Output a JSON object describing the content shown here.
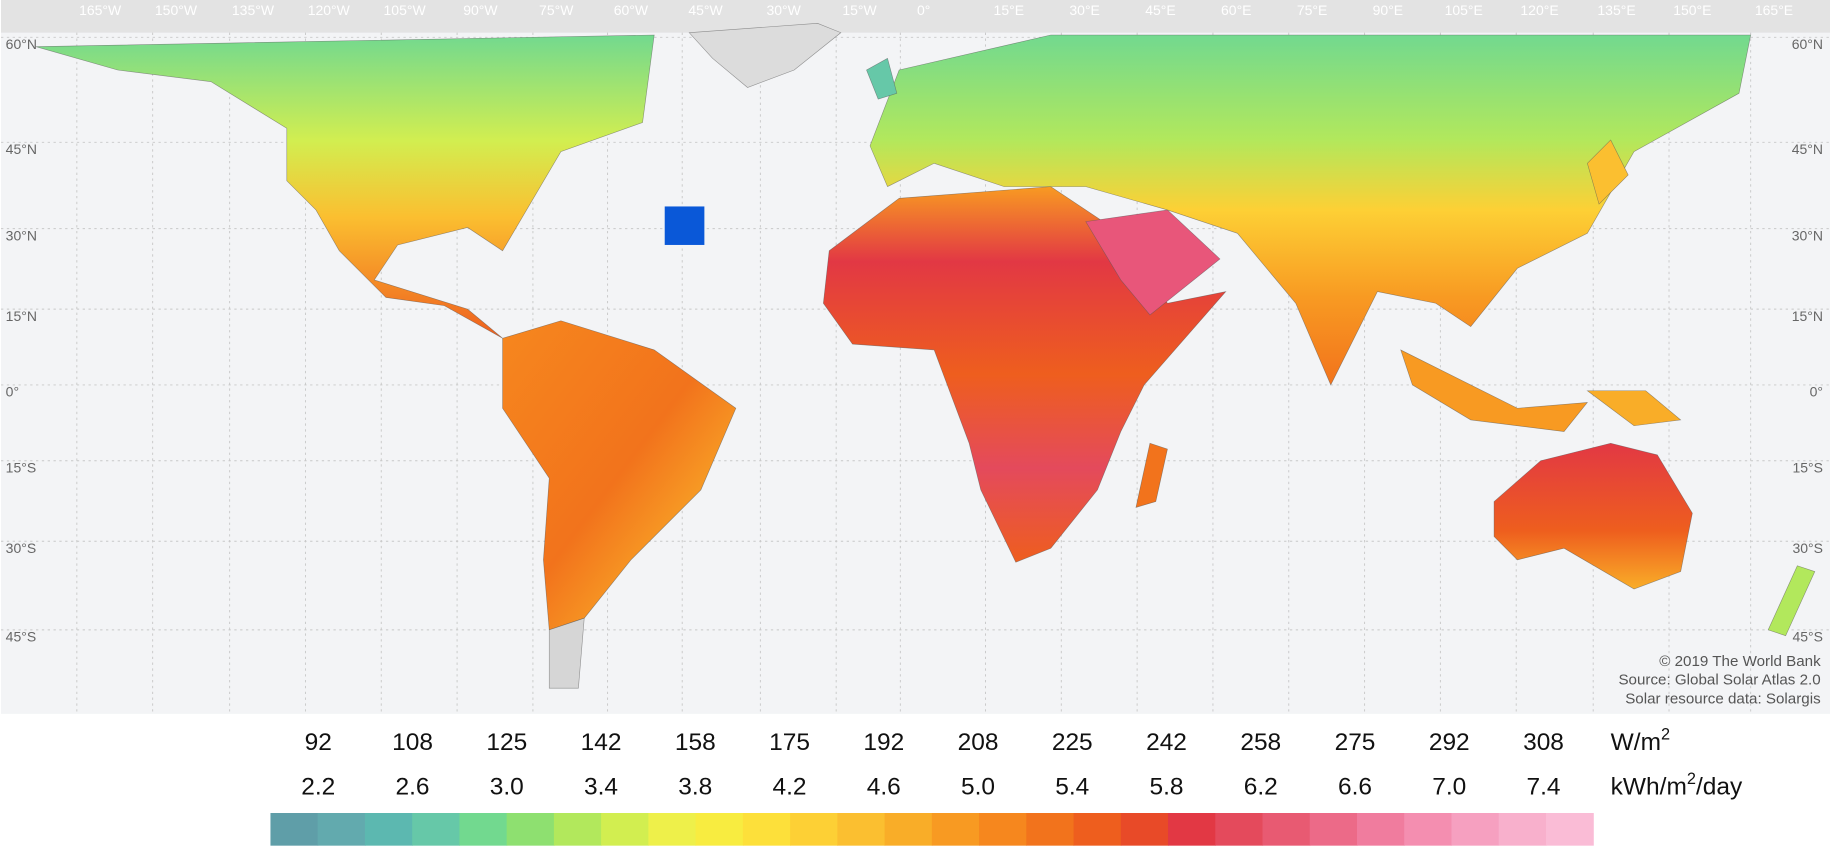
{
  "map": {
    "longitude_labels": [
      "165°W",
      "150°W",
      "135°W",
      "120°W",
      "105°W",
      "90°W",
      "75°W",
      "60°W",
      "45°W",
      "30°W",
      "15°W",
      "0°",
      "15°E",
      "30°E",
      "45°E",
      "60°E",
      "75°E",
      "90°E",
      "105°E",
      "120°E",
      "135°E",
      "150°E",
      "165°E"
    ],
    "latitude_labels": [
      "60°N",
      "45°N",
      "30°N",
      "15°N",
      "0°",
      "15°S",
      "30°S",
      "45°S"
    ],
    "attribution": [
      "© 2019 The World Bank",
      "Source: Global Solar Atlas 2.0",
      "Solar resource data: Solargis"
    ]
  },
  "legend": {
    "power_values": [
      "92",
      "108",
      "125",
      "142",
      "158",
      "175",
      "192",
      "208",
      "225",
      "242",
      "258",
      "275",
      "292",
      "308"
    ],
    "power_unit": {
      "base": "W/m",
      "sup": "2"
    },
    "energy_values": [
      "2.2",
      "2.6",
      "3.0",
      "3.4",
      "3.8",
      "4.2",
      "4.6",
      "5.0",
      "5.4",
      "5.8",
      "6.2",
      "6.6",
      "7.0",
      "7.4"
    ],
    "energy_unit": {
      "base": "kWh/m",
      "sup": "2",
      "tail": "/day"
    },
    "colors": [
      "#5f9ea8",
      "#62aaae",
      "#5cb8b0",
      "#66c8a8",
      "#72d98f",
      "#8ee070",
      "#b2e85c",
      "#d2ee50",
      "#eef04a",
      "#f8ec40",
      "#fde03a",
      "#fdd035",
      "#fbbf30",
      "#f9ad28",
      "#f89a22",
      "#f6871e",
      "#f2731c",
      "#ee5e1e",
      "#e84a28",
      "#e23844",
      "#e44a5c",
      "#e85a72",
      "#ec6a88",
      "#f07c9e",
      "#f48eb0",
      "#f6a0c0",
      "#f8b0cc",
      "#fabcd6"
    ]
  }
}
